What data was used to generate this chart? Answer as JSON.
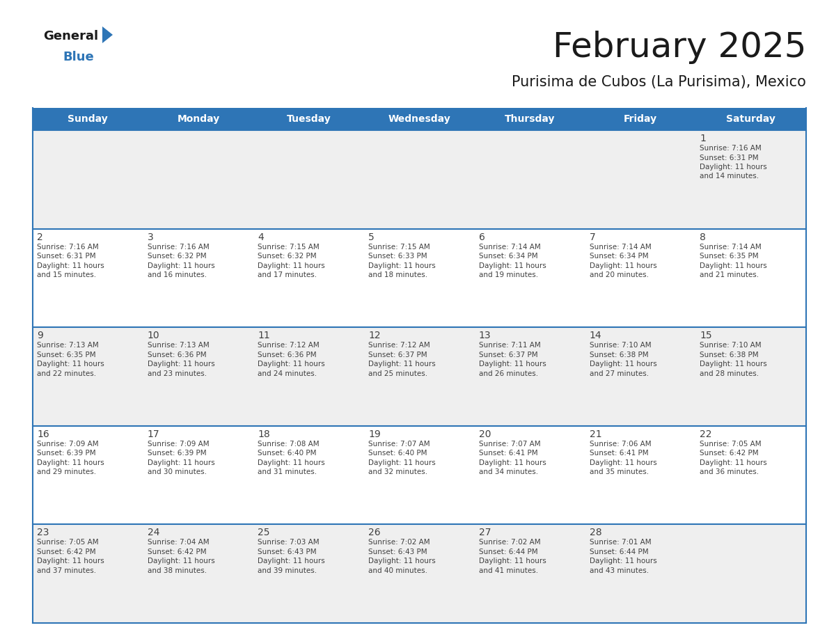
{
  "title": "February 2025",
  "subtitle": "Purisima de Cubos (La Purisima), Mexico",
  "days_of_week": [
    "Sunday",
    "Monday",
    "Tuesday",
    "Wednesday",
    "Thursday",
    "Friday",
    "Saturday"
  ],
  "header_bg": "#2E75B6",
  "header_text": "#FFFFFF",
  "cell_bg_odd": "#EFEFEF",
  "cell_bg_even": "#FFFFFF",
  "day_num_color": "#404040",
  "info_color": "#404040",
  "border_color": "#2E75B6",
  "title_color": "#1a1a1a",
  "subtitle_color": "#1a1a1a",
  "logo_general_color": "#1a1a1a",
  "logo_blue_color": "#2E75B6",
  "logo_triangle_color": "#2E75B6",
  "calendar": [
    [
      null,
      null,
      null,
      null,
      null,
      null,
      {
        "day": 1,
        "sunrise": "7:16 AM",
        "sunset": "6:31 PM",
        "daylight": "11 hours and 14 minutes."
      }
    ],
    [
      {
        "day": 2,
        "sunrise": "7:16 AM",
        "sunset": "6:31 PM",
        "daylight": "11 hours and 15 minutes."
      },
      {
        "day": 3,
        "sunrise": "7:16 AM",
        "sunset": "6:32 PM",
        "daylight": "11 hours and 16 minutes."
      },
      {
        "day": 4,
        "sunrise": "7:15 AM",
        "sunset": "6:32 PM",
        "daylight": "11 hours and 17 minutes."
      },
      {
        "day": 5,
        "sunrise": "7:15 AM",
        "sunset": "6:33 PM",
        "daylight": "11 hours and 18 minutes."
      },
      {
        "day": 6,
        "sunrise": "7:14 AM",
        "sunset": "6:34 PM",
        "daylight": "11 hours and 19 minutes."
      },
      {
        "day": 7,
        "sunrise": "7:14 AM",
        "sunset": "6:34 PM",
        "daylight": "11 hours and 20 minutes."
      },
      {
        "day": 8,
        "sunrise": "7:14 AM",
        "sunset": "6:35 PM",
        "daylight": "11 hours and 21 minutes."
      }
    ],
    [
      {
        "day": 9,
        "sunrise": "7:13 AM",
        "sunset": "6:35 PM",
        "daylight": "11 hours and 22 minutes."
      },
      {
        "day": 10,
        "sunrise": "7:13 AM",
        "sunset": "6:36 PM",
        "daylight": "11 hours and 23 minutes."
      },
      {
        "day": 11,
        "sunrise": "7:12 AM",
        "sunset": "6:36 PM",
        "daylight": "11 hours and 24 minutes."
      },
      {
        "day": 12,
        "sunrise": "7:12 AM",
        "sunset": "6:37 PM",
        "daylight": "11 hours and 25 minutes."
      },
      {
        "day": 13,
        "sunrise": "7:11 AM",
        "sunset": "6:37 PM",
        "daylight": "11 hours and 26 minutes."
      },
      {
        "day": 14,
        "sunrise": "7:10 AM",
        "sunset": "6:38 PM",
        "daylight": "11 hours and 27 minutes."
      },
      {
        "day": 15,
        "sunrise": "7:10 AM",
        "sunset": "6:38 PM",
        "daylight": "11 hours and 28 minutes."
      }
    ],
    [
      {
        "day": 16,
        "sunrise": "7:09 AM",
        "sunset": "6:39 PM",
        "daylight": "11 hours and 29 minutes."
      },
      {
        "day": 17,
        "sunrise": "7:09 AM",
        "sunset": "6:39 PM",
        "daylight": "11 hours and 30 minutes."
      },
      {
        "day": 18,
        "sunrise": "7:08 AM",
        "sunset": "6:40 PM",
        "daylight": "11 hours and 31 minutes."
      },
      {
        "day": 19,
        "sunrise": "7:07 AM",
        "sunset": "6:40 PM",
        "daylight": "11 hours and 32 minutes."
      },
      {
        "day": 20,
        "sunrise": "7:07 AM",
        "sunset": "6:41 PM",
        "daylight": "11 hours and 34 minutes."
      },
      {
        "day": 21,
        "sunrise": "7:06 AM",
        "sunset": "6:41 PM",
        "daylight": "11 hours and 35 minutes."
      },
      {
        "day": 22,
        "sunrise": "7:05 AM",
        "sunset": "6:42 PM",
        "daylight": "11 hours and 36 minutes."
      }
    ],
    [
      {
        "day": 23,
        "sunrise": "7:05 AM",
        "sunset": "6:42 PM",
        "daylight": "11 hours and 37 minutes."
      },
      {
        "day": 24,
        "sunrise": "7:04 AM",
        "sunset": "6:42 PM",
        "daylight": "11 hours and 38 minutes."
      },
      {
        "day": 25,
        "sunrise": "7:03 AM",
        "sunset": "6:43 PM",
        "daylight": "11 hours and 39 minutes."
      },
      {
        "day": 26,
        "sunrise": "7:02 AM",
        "sunset": "6:43 PM",
        "daylight": "11 hours and 40 minutes."
      },
      {
        "day": 27,
        "sunrise": "7:02 AM",
        "sunset": "6:44 PM",
        "daylight": "11 hours and 41 minutes."
      },
      {
        "day": 28,
        "sunrise": "7:01 AM",
        "sunset": "6:44 PM",
        "daylight": "11 hours and 43 minutes."
      },
      null
    ]
  ]
}
